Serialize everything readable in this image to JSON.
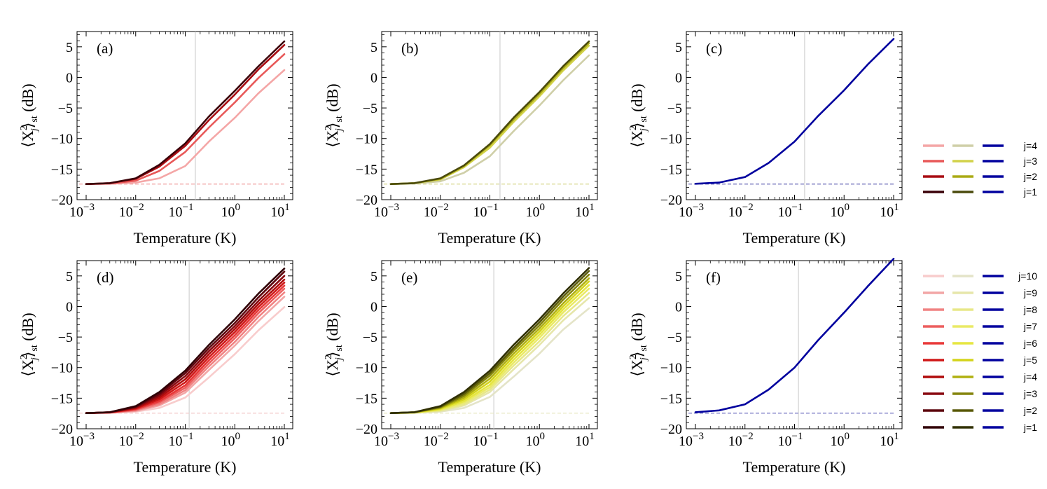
{
  "chart_data": [
    {
      "type": "line",
      "panel": "(a)",
      "xlabel": "Temperature (K)",
      "ylabel_parts": [
        "⟨X",
        "j",
        "2",
        "⟩",
        "st",
        " (dB)"
      ],
      "xscale": "log",
      "xlim": [
        0.001,
        10
      ],
      "ylim": [
        -20,
        7.5
      ],
      "xticks": [
        "10",
        "10",
        "10",
        "10",
        "10"
      ],
      "xtick_exp": [
        "−3",
        "−2",
        "−1",
        "0",
        "1"
      ],
      "yticks": [
        "5",
        "0",
        "−5",
        "−10",
        "−15",
        "−20"
      ],
      "ytick_vals": [
        5,
        0,
        -5,
        -10,
        -15,
        -20
      ],
      "vline_x": 0.16,
      "baseline": -17.45,
      "baseline_color": "#f0a0a0",
      "series": [
        {
          "name": "j=4",
          "color": "#f4a6a6",
          "x": [
            0.001,
            0.003,
            0.01,
            0.03,
            0.1,
            0.3,
            1,
            3,
            10
          ],
          "y": [
            -17.45,
            -17.4,
            -17.2,
            -16.5,
            -14.5,
            -10.5,
            -6.6,
            -2.6,
            1.2
          ]
        },
        {
          "name": "j=3",
          "color": "#e85858",
          "x": [
            0.001,
            0.003,
            0.01,
            0.03,
            0.1,
            0.3,
            1,
            3,
            10
          ],
          "y": [
            -17.45,
            -17.35,
            -16.9,
            -15.3,
            -12.2,
            -8.2,
            -4.1,
            -0.1,
            3.8
          ]
        },
        {
          "name": "j=2",
          "color": "#a80c12",
          "x": [
            0.001,
            0.003,
            0.01,
            0.03,
            0.1,
            0.3,
            1,
            3,
            10
          ],
          "y": [
            -17.45,
            -17.3,
            -16.6,
            -14.6,
            -11.2,
            -7.0,
            -2.8,
            1.3,
            5.3
          ]
        },
        {
          "name": "j=1",
          "color": "#3a0008",
          "x": [
            0.001,
            0.003,
            0.01,
            0.03,
            0.1,
            0.3,
            1,
            3,
            10
          ],
          "y": [
            -17.45,
            -17.3,
            -16.5,
            -14.3,
            -10.8,
            -6.4,
            -2.2,
            1.8,
            5.9
          ]
        }
      ]
    },
    {
      "type": "line",
      "panel": "(b)",
      "xlabel": "Temperature (K)",
      "ylabel_parts": [
        "⟨X",
        "j",
        "2",
        "⟩",
        "st",
        " (dB)"
      ],
      "xscale": "log",
      "xlim": [
        0.001,
        10
      ],
      "ylim": [
        -20,
        7.5
      ],
      "xticks": [
        "10",
        "10",
        "10",
        "10",
        "10"
      ],
      "xtick_exp": [
        "−3",
        "−2",
        "−1",
        "0",
        "1"
      ],
      "yticks": [
        "5",
        "0",
        "−5",
        "−10",
        "−15",
        "−20"
      ],
      "ytick_vals": [
        5,
        0,
        -5,
        -10,
        -15,
        -20
      ],
      "vline_x": 0.16,
      "baseline": -17.45,
      "baseline_color": "#d8d890",
      "series": [
        {
          "name": "j=4",
          "color": "#cfcfa8",
          "x": [
            0.001,
            0.003,
            0.01,
            0.03,
            0.1,
            0.3,
            1,
            3,
            10
          ],
          "y": [
            -17.45,
            -17.35,
            -17.0,
            -15.6,
            -12.9,
            -8.8,
            -4.6,
            -0.5,
            3.6
          ]
        },
        {
          "name": "j=3",
          "color": "#d2d24a",
          "x": [
            0.001,
            0.003,
            0.01,
            0.03,
            0.1,
            0.3,
            1,
            3,
            10
          ],
          "y": [
            -17.45,
            -17.3,
            -16.7,
            -14.7,
            -11.5,
            -7.3,
            -3.1,
            1.1,
            5.2
          ]
        },
        {
          "name": "j=2",
          "color": "#aaaa14",
          "x": [
            0.001,
            0.003,
            0.01,
            0.03,
            0.1,
            0.3,
            1,
            3,
            10
          ],
          "y": [
            -17.45,
            -17.3,
            -16.6,
            -14.5,
            -11.1,
            -6.9,
            -2.7,
            1.5,
            5.6
          ]
        },
        {
          "name": "j=1",
          "color": "#4a4a0c",
          "x": [
            0.001,
            0.003,
            0.01,
            0.03,
            0.1,
            0.3,
            1,
            3,
            10
          ],
          "y": [
            -17.45,
            -17.3,
            -16.5,
            -14.4,
            -10.9,
            -6.6,
            -2.4,
            1.8,
            5.9
          ]
        }
      ]
    },
    {
      "type": "line",
      "panel": "(c)",
      "xlabel": "Temperature (K)",
      "ylabel_parts": [
        "⟨X",
        "j",
        "2",
        "⟩",
        "st",
        " (dB)"
      ],
      "xscale": "log",
      "xlim": [
        0.001,
        10
      ],
      "ylim": [
        -20,
        7.5
      ],
      "xticks": [
        "10",
        "10",
        "10",
        "10",
        "10"
      ],
      "xtick_exp": [
        "−3",
        "−2",
        "−1",
        "0",
        "1"
      ],
      "yticks": [
        "5",
        "0",
        "−5",
        "−10",
        "−15",
        "−20"
      ],
      "ytick_vals": [
        5,
        0,
        -5,
        -10,
        -15,
        -20
      ],
      "vline_x": 0.16,
      "baseline": -17.45,
      "baseline_color": "#6a6ab8",
      "series": [
        {
          "name": "j=1",
          "color": "#00009e",
          "x": [
            0.001,
            0.003,
            0.01,
            0.03,
            0.1,
            0.3,
            1,
            3,
            10
          ],
          "y": [
            -17.4,
            -17.2,
            -16.3,
            -14.0,
            -10.5,
            -6.3,
            -2.1,
            2.1,
            6.3
          ]
        }
      ]
    },
    {
      "type": "line",
      "panel": "(d)",
      "xlabel": "Temperature (K)",
      "ylabel_parts": [
        "⟨X",
        "j",
        "2",
        "⟩",
        "st",
        " (dB)"
      ],
      "xscale": "log",
      "xlim": [
        0.001,
        10
      ],
      "ylim": [
        -20,
        7.5
      ],
      "xticks": [
        "10",
        "10",
        "10",
        "10",
        "10"
      ],
      "xtick_exp": [
        "−3",
        "−2",
        "−1",
        "0",
        "1"
      ],
      "yticks": [
        "5",
        "0",
        "−5",
        "−10",
        "−15",
        "−20"
      ],
      "ytick_vals": [
        5,
        0,
        -5,
        -10,
        -15,
        -20
      ],
      "vline_x": 0.12,
      "baseline": -17.45,
      "baseline_color": "#f4c8c8",
      "series": [
        {
          "name": "j=10",
          "color": "#f8cccc",
          "x": [
            0.001,
            0.003,
            0.01,
            0.03,
            0.1,
            0.3,
            1,
            3,
            10
          ],
          "y": [
            -17.45,
            -17.4,
            -17.2,
            -16.6,
            -14.9,
            -11.6,
            -7.8,
            -3.9,
            -0.1
          ]
        },
        {
          "name": "j=9",
          "color": "#f2a6a6",
          "x": [
            0.001,
            0.003,
            0.01,
            0.03,
            0.1,
            0.3,
            1,
            3,
            10
          ],
          "y": [
            -17.45,
            -17.38,
            -17.1,
            -16.2,
            -14.1,
            -10.4,
            -6.4,
            -2.4,
            1.6
          ]
        },
        {
          "name": "j=8",
          "color": "#f08282",
          "x": [
            0.001,
            0.003,
            0.01,
            0.03,
            0.1,
            0.3,
            1,
            3,
            10
          ],
          "y": [
            -17.45,
            -17.36,
            -17.0,
            -16.0,
            -13.7,
            -9.8,
            -5.8,
            -1.7,
            2.3
          ]
        },
        {
          "name": "j=7",
          "color": "#ec5e5e",
          "x": [
            0.001,
            0.003,
            0.01,
            0.03,
            0.1,
            0.3,
            1,
            3,
            10
          ],
          "y": [
            -17.45,
            -17.35,
            -16.9,
            -15.7,
            -13.3,
            -9.3,
            -5.2,
            -1.1,
            2.9
          ]
        },
        {
          "name": "j=6",
          "color": "#e83838",
          "x": [
            0.001,
            0.003,
            0.01,
            0.03,
            0.1,
            0.3,
            1,
            3,
            10
          ],
          "y": [
            -17.45,
            -17.34,
            -16.8,
            -15.5,
            -12.9,
            -8.8,
            -4.7,
            -0.6,
            3.4
          ]
        },
        {
          "name": "j=5",
          "color": "#d01818",
          "x": [
            0.001,
            0.003,
            0.01,
            0.03,
            0.1,
            0.3,
            1,
            3,
            10
          ],
          "y": [
            -17.45,
            -17.33,
            -16.7,
            -15.2,
            -12.4,
            -8.3,
            -4.2,
            -0.1,
            3.9
          ]
        },
        {
          "name": "j=4",
          "color": "#b00c0c",
          "x": [
            0.001,
            0.003,
            0.01,
            0.03,
            0.1,
            0.3,
            1,
            3,
            10
          ],
          "y": [
            -17.45,
            -17.32,
            -16.6,
            -14.9,
            -11.9,
            -7.8,
            -3.7,
            0.4,
            4.4
          ]
        },
        {
          "name": "j=3",
          "color": "#880810",
          "x": [
            0.001,
            0.003,
            0.01,
            0.03,
            0.1,
            0.3,
            1,
            3,
            10
          ],
          "y": [
            -17.45,
            -17.31,
            -16.5,
            -14.6,
            -11.4,
            -7.3,
            -3.2,
            0.9,
            5.0
          ]
        },
        {
          "name": "j=2",
          "color": "#5c040c",
          "x": [
            0.001,
            0.003,
            0.01,
            0.03,
            0.1,
            0.3,
            1,
            3,
            10
          ],
          "y": [
            -17.45,
            -17.3,
            -16.4,
            -14.3,
            -10.9,
            -6.8,
            -2.7,
            1.5,
            5.7
          ]
        },
        {
          "name": "j=1",
          "color": "#300006",
          "x": [
            0.001,
            0.003,
            0.01,
            0.03,
            0.1,
            0.3,
            1,
            3,
            10
          ],
          "y": [
            -17.45,
            -17.3,
            -16.3,
            -14.0,
            -10.5,
            -6.3,
            -2.1,
            2.1,
            6.2
          ]
        }
      ]
    },
    {
      "type": "line",
      "panel": "(e)",
      "xlabel": "Temperature (K)",
      "ylabel_parts": [
        "⟨X",
        "j",
        "2",
        "⟩",
        "st",
        " (dB)"
      ],
      "xscale": "log",
      "xlim": [
        0.001,
        10
      ],
      "ylim": [
        -20,
        7.5
      ],
      "xticks": [
        "10",
        "10",
        "10",
        "10",
        "10"
      ],
      "xtick_exp": [
        "−3",
        "−2",
        "−1",
        "0",
        "1"
      ],
      "yticks": [
        "5",
        "0",
        "−5",
        "−10",
        "−15",
        "−20"
      ],
      "ytick_vals": [
        5,
        0,
        -5,
        -10,
        -15,
        -20
      ],
      "vline_x": 0.12,
      "baseline": -17.45,
      "baseline_color": "#e8e8c0",
      "series": [
        {
          "name": "j=10",
          "color": "#e4e4c8",
          "x": [
            0.001,
            0.003,
            0.01,
            0.03,
            0.1,
            0.3,
            1,
            3,
            10
          ],
          "y": [
            -17.45,
            -17.4,
            -17.2,
            -16.6,
            -14.8,
            -11.5,
            -7.7,
            -3.8,
            -0.3
          ]
        },
        {
          "name": "j=9",
          "color": "#e6e6aa",
          "x": [
            0.001,
            0.003,
            0.01,
            0.03,
            0.1,
            0.3,
            1,
            3,
            10
          ],
          "y": [
            -17.45,
            -17.38,
            -17.1,
            -16.2,
            -14.0,
            -10.3,
            -6.3,
            -2.3,
            1.4
          ]
        },
        {
          "name": "j=8",
          "color": "#e8e888",
          "x": [
            0.001,
            0.003,
            0.01,
            0.03,
            0.1,
            0.3,
            1,
            3,
            10
          ],
          "y": [
            -17.45,
            -17.36,
            -17.0,
            -16.0,
            -13.6,
            -9.7,
            -5.7,
            -1.6,
            2.2
          ]
        },
        {
          "name": "j=7",
          "color": "#eaea66",
          "x": [
            0.001,
            0.003,
            0.01,
            0.03,
            0.1,
            0.3,
            1,
            3,
            10
          ],
          "y": [
            -17.45,
            -17.35,
            -16.9,
            -15.7,
            -13.2,
            -9.2,
            -5.1,
            -1.0,
            2.9
          ]
        },
        {
          "name": "j=6",
          "color": "#e6e640",
          "x": [
            0.001,
            0.003,
            0.01,
            0.03,
            0.1,
            0.3,
            1,
            3,
            10
          ],
          "y": [
            -17.45,
            -17.34,
            -16.8,
            -15.5,
            -12.8,
            -8.7,
            -4.6,
            -0.5,
            3.5
          ]
        },
        {
          "name": "j=5",
          "color": "#d4d41a",
          "x": [
            0.001,
            0.003,
            0.01,
            0.03,
            0.1,
            0.3,
            1,
            3,
            10
          ],
          "y": [
            -17.45,
            -17.33,
            -16.7,
            -15.2,
            -12.3,
            -8.2,
            -4.1,
            0.0,
            4.1
          ]
        },
        {
          "name": "j=4",
          "color": "#b0b010",
          "x": [
            0.001,
            0.003,
            0.01,
            0.03,
            0.1,
            0.3,
            1,
            3,
            10
          ],
          "y": [
            -17.45,
            -17.32,
            -16.6,
            -14.9,
            -11.8,
            -7.7,
            -3.6,
            0.5,
            4.6
          ]
        },
        {
          "name": "j=3",
          "color": "#84840c",
          "x": [
            0.001,
            0.003,
            0.01,
            0.03,
            0.1,
            0.3,
            1,
            3,
            10
          ],
          "y": [
            -17.45,
            -17.31,
            -16.5,
            -14.6,
            -11.3,
            -7.2,
            -3.1,
            1.1,
            5.2
          ]
        },
        {
          "name": "j=2",
          "color": "#585808",
          "x": [
            0.001,
            0.003,
            0.01,
            0.03,
            0.1,
            0.3,
            1,
            3,
            10
          ],
          "y": [
            -17.45,
            -17.3,
            -16.4,
            -14.3,
            -10.9,
            -6.8,
            -2.6,
            1.6,
            5.8
          ]
        },
        {
          "name": "j=1",
          "color": "#303004",
          "x": [
            0.001,
            0.003,
            0.01,
            0.03,
            0.1,
            0.3,
            1,
            3,
            10
          ],
          "y": [
            -17.45,
            -17.3,
            -16.3,
            -14.0,
            -10.5,
            -6.3,
            -2.1,
            2.1,
            6.3
          ]
        }
      ]
    },
    {
      "type": "line",
      "panel": "(f)",
      "xlabel": "Temperature (K)",
      "ylabel_parts": [
        "⟨X",
        "j",
        "2",
        "⟩",
        "st",
        " (dB)"
      ],
      "xscale": "log",
      "xlim": [
        0.001,
        10
      ],
      "ylim": [
        -20,
        7.5
      ],
      "xticks": [
        "10",
        "10",
        "10",
        "10",
        "10"
      ],
      "xtick_exp": [
        "−3",
        "−2",
        "−1",
        "0",
        "1"
      ],
      "yticks": [
        "5",
        "0",
        "−5",
        "−10",
        "−15",
        "−20"
      ],
      "ytick_vals": [
        5,
        0,
        -5,
        -10,
        -15,
        -20
      ],
      "vline_x": 0.12,
      "baseline": -17.45,
      "baseline_color": "#7070c0",
      "series": [
        {
          "name": "j=1",
          "color": "#00009e",
          "x": [
            0.001,
            0.003,
            0.01,
            0.03,
            0.1,
            0.3,
            1,
            3,
            10
          ],
          "y": [
            -17.3,
            -17.0,
            -16.0,
            -13.6,
            -10.0,
            -5.5,
            -1.0,
            3.3,
            7.8
          ]
        }
      ]
    }
  ],
  "legends": [
    {
      "columns": [
        "#f4a6a6|#e85858|#a80c12|#3a0008",
        "#cfcfa8|#d2d24a|#aaaa14|#4a4a0c",
        "#00009e|#00009e|#00009e|#00009e"
      ],
      "labels": [
        "j=4",
        "j=3",
        "j=2",
        "j=1"
      ],
      "left": [],
      "mid": [],
      "right": []
    },
    {
      "labels": [
        "j=10",
        "j=9",
        "j=8",
        "j=7",
        "j=6",
        "j=5",
        "j=4",
        "j=3",
        "j=2",
        "j=1"
      ],
      "left": [
        "#f8cccc",
        "#f2a6a6",
        "#f08282",
        "#ec5e5e",
        "#e83838",
        "#d01818",
        "#b00c0c",
        "#880810",
        "#5c040c",
        "#300006"
      ],
      "mid": [
        "#e4e4c8",
        "#e6e6aa",
        "#e8e888",
        "#eaea66",
        "#e6e640",
        "#d4d41a",
        "#b0b010",
        "#84840c",
        "#585808",
        "#303004"
      ],
      "right": [
        "#00009e",
        "#00009e",
        "#00009e",
        "#00009e",
        "#00009e",
        "#00009e",
        "#00009e",
        "#00009e",
        "#00009e",
        "#00009e"
      ]
    }
  ]
}
